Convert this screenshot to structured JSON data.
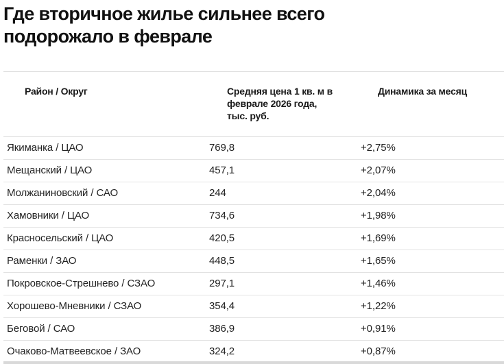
{
  "title": "Где вторичное жилье сильнее всего подорожало в феврале",
  "table": {
    "headers": [
      "Район / Округ",
      "Средняя цена 1 кв. м в феврале 2026 года, тыс. руб.",
      "Динамика за месяц"
    ],
    "rows": [
      {
        "district": "Якиманка / ЦАО",
        "price": "769,8",
        "change": "+2,75%"
      },
      {
        "district": "Мещанский / ЦАО",
        "price": "457,1",
        "change": "+2,07%"
      },
      {
        "district": "Молжаниновский / САО",
        "price": "244",
        "change": "+2,04%"
      },
      {
        "district": "Хамовники / ЦАО",
        "price": "734,6",
        "change": "+1,98%"
      },
      {
        "district": "Красносельский / ЦАО",
        "price": "420,5",
        "change": "+1,69%"
      },
      {
        "district": "Раменки / ЗАО",
        "price": "448,5",
        "change": "+1,65%"
      },
      {
        "district": "Покровское-Стрешнево / СЗАО",
        "price": "297,1",
        "change": "+1,46%"
      },
      {
        "district": "Хорошево-Мневники / СЗАО",
        "price": "354,4",
        "change": "+1,22%"
      },
      {
        "district": "Беговой / САО",
        "price": "386,9",
        "change": "+0,91%"
      },
      {
        "district": "Очаково-Матвеевское / ЗАО",
        "price": "324,2",
        "change": "+0,87%"
      }
    ]
  }
}
